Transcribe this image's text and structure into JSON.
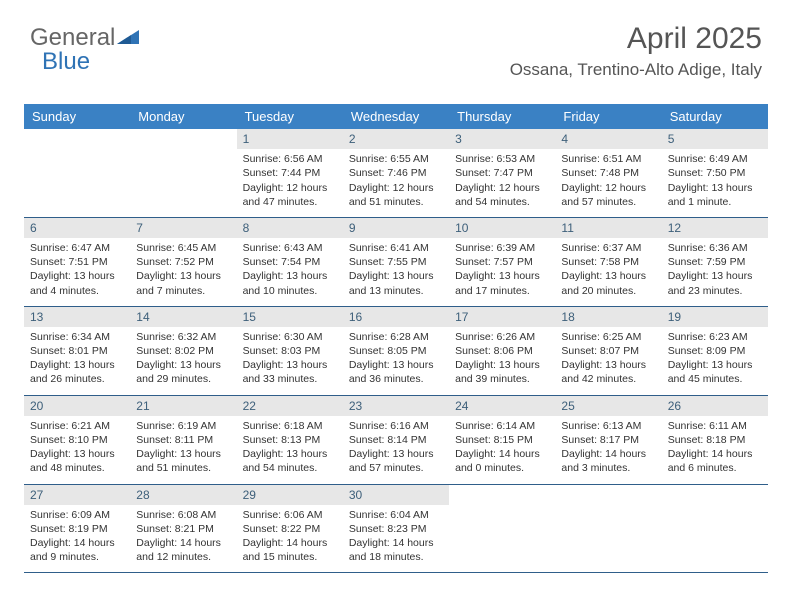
{
  "logo": {
    "part1": "General",
    "part2": "Blue"
  },
  "header": {
    "month": "April 2025",
    "location": "Ossana, Trentino-Alto Adige, Italy"
  },
  "colors": {
    "header_bg": "#3a81c4",
    "header_text": "#ffffff",
    "daynum_bg": "#e7e7e7",
    "daynum_text": "#3d5f7a",
    "rule": "#2f5e8a",
    "logo_blue": "#2f73b5",
    "text": "#333333"
  },
  "daynames": [
    "Sunday",
    "Monday",
    "Tuesday",
    "Wednesday",
    "Thursday",
    "Friday",
    "Saturday"
  ],
  "weeks": [
    [
      {
        "empty": true
      },
      {
        "empty": true
      },
      {
        "n": "1",
        "sunrise": "6:56 AM",
        "sunset": "7:44 PM",
        "daylight": "12 hours and 47 minutes."
      },
      {
        "n": "2",
        "sunrise": "6:55 AM",
        "sunset": "7:46 PM",
        "daylight": "12 hours and 51 minutes."
      },
      {
        "n": "3",
        "sunrise": "6:53 AM",
        "sunset": "7:47 PM",
        "daylight": "12 hours and 54 minutes."
      },
      {
        "n": "4",
        "sunrise": "6:51 AM",
        "sunset": "7:48 PM",
        "daylight": "12 hours and 57 minutes."
      },
      {
        "n": "5",
        "sunrise": "6:49 AM",
        "sunset": "7:50 PM",
        "daylight": "13 hours and 1 minute."
      }
    ],
    [
      {
        "n": "6",
        "sunrise": "6:47 AM",
        "sunset": "7:51 PM",
        "daylight": "13 hours and 4 minutes."
      },
      {
        "n": "7",
        "sunrise": "6:45 AM",
        "sunset": "7:52 PM",
        "daylight": "13 hours and 7 minutes."
      },
      {
        "n": "8",
        "sunrise": "6:43 AM",
        "sunset": "7:54 PM",
        "daylight": "13 hours and 10 minutes."
      },
      {
        "n": "9",
        "sunrise": "6:41 AM",
        "sunset": "7:55 PM",
        "daylight": "13 hours and 13 minutes."
      },
      {
        "n": "10",
        "sunrise": "6:39 AM",
        "sunset": "7:57 PM",
        "daylight": "13 hours and 17 minutes."
      },
      {
        "n": "11",
        "sunrise": "6:37 AM",
        "sunset": "7:58 PM",
        "daylight": "13 hours and 20 minutes."
      },
      {
        "n": "12",
        "sunrise": "6:36 AM",
        "sunset": "7:59 PM",
        "daylight": "13 hours and 23 minutes."
      }
    ],
    [
      {
        "n": "13",
        "sunrise": "6:34 AM",
        "sunset": "8:01 PM",
        "daylight": "13 hours and 26 minutes."
      },
      {
        "n": "14",
        "sunrise": "6:32 AM",
        "sunset": "8:02 PM",
        "daylight": "13 hours and 29 minutes."
      },
      {
        "n": "15",
        "sunrise": "6:30 AM",
        "sunset": "8:03 PM",
        "daylight": "13 hours and 33 minutes."
      },
      {
        "n": "16",
        "sunrise": "6:28 AM",
        "sunset": "8:05 PM",
        "daylight": "13 hours and 36 minutes."
      },
      {
        "n": "17",
        "sunrise": "6:26 AM",
        "sunset": "8:06 PM",
        "daylight": "13 hours and 39 minutes."
      },
      {
        "n": "18",
        "sunrise": "6:25 AM",
        "sunset": "8:07 PM",
        "daylight": "13 hours and 42 minutes."
      },
      {
        "n": "19",
        "sunrise": "6:23 AM",
        "sunset": "8:09 PM",
        "daylight": "13 hours and 45 minutes."
      }
    ],
    [
      {
        "n": "20",
        "sunrise": "6:21 AM",
        "sunset": "8:10 PM",
        "daylight": "13 hours and 48 minutes."
      },
      {
        "n": "21",
        "sunrise": "6:19 AM",
        "sunset": "8:11 PM",
        "daylight": "13 hours and 51 minutes."
      },
      {
        "n": "22",
        "sunrise": "6:18 AM",
        "sunset": "8:13 PM",
        "daylight": "13 hours and 54 minutes."
      },
      {
        "n": "23",
        "sunrise": "6:16 AM",
        "sunset": "8:14 PM",
        "daylight": "13 hours and 57 minutes."
      },
      {
        "n": "24",
        "sunrise": "6:14 AM",
        "sunset": "8:15 PM",
        "daylight": "14 hours and 0 minutes."
      },
      {
        "n": "25",
        "sunrise": "6:13 AM",
        "sunset": "8:17 PM",
        "daylight": "14 hours and 3 minutes."
      },
      {
        "n": "26",
        "sunrise": "6:11 AM",
        "sunset": "8:18 PM",
        "daylight": "14 hours and 6 minutes."
      }
    ],
    [
      {
        "n": "27",
        "sunrise": "6:09 AM",
        "sunset": "8:19 PM",
        "daylight": "14 hours and 9 minutes."
      },
      {
        "n": "28",
        "sunrise": "6:08 AM",
        "sunset": "8:21 PM",
        "daylight": "14 hours and 12 minutes."
      },
      {
        "n": "29",
        "sunrise": "6:06 AM",
        "sunset": "8:22 PM",
        "daylight": "14 hours and 15 minutes."
      },
      {
        "n": "30",
        "sunrise": "6:04 AM",
        "sunset": "8:23 PM",
        "daylight": "14 hours and 18 minutes."
      },
      {
        "empty": true
      },
      {
        "empty": true
      },
      {
        "empty": true
      }
    ]
  ],
  "labels": {
    "sunrise": "Sunrise:",
    "sunset": "Sunset:",
    "daylight": "Daylight:"
  }
}
